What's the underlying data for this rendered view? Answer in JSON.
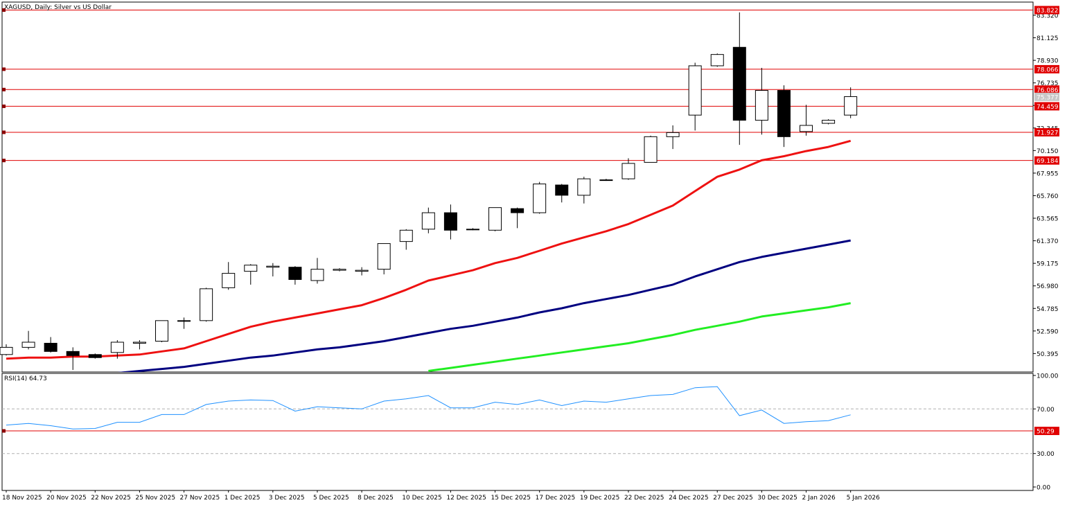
{
  "chart_data": [
    {
      "type": "candlestick",
      "title": "XAGUSD, Daily:  Silver vs US Dollar",
      "symbol": "XAGUSD",
      "timeframe": "Daily",
      "description": "Silver vs US Dollar",
      "ylim": [
        48.6,
        84.6
      ],
      "y_ticks": [
        "50.395",
        "52.590",
        "54.785",
        "56.980",
        "59.175",
        "61.370",
        "63.565",
        "65.760",
        "67.955",
        "70.150",
        "72.345",
        "74.540",
        "76.735",
        "78.930",
        "81.125",
        "83.320"
      ],
      "x_tick_labels": [
        "18 Nov 2025",
        "20 Nov 2025",
        "22 Nov 2025",
        "25 Nov 2025",
        "27 Nov 2025",
        "1 Dec 2025",
        "3 Dec 2025",
        "5 Dec 2025",
        "8 Dec 2025",
        "10 Dec 2025",
        "12 Dec 2025",
        "15 Dec 2025",
        "17 Dec 2025",
        "19 Dec 2025",
        "22 Dec 2025",
        "24 Dec 2025",
        "27 Dec 2025",
        "30 Dec 2025",
        "2 Jan 2026",
        "5 Jan 2026"
      ],
      "candles": [
        {
          "o": 50.3,
          "h": 51.3,
          "l": 50.2,
          "c": 51.0
        },
        {
          "o": 51.0,
          "h": 52.6,
          "l": 50.8,
          "c": 51.5
        },
        {
          "o": 51.4,
          "h": 52.0,
          "l": 50.5,
          "c": 50.6
        },
        {
          "o": 50.6,
          "h": 51.0,
          "l": 48.8,
          "c": 50.2
        },
        {
          "o": 50.3,
          "h": 50.4,
          "l": 49.9,
          "c": 50.0
        },
        {
          "o": 50.5,
          "h": 51.7,
          "l": 49.9,
          "c": 51.5
        },
        {
          "o": 51.4,
          "h": 51.7,
          "l": 50.8,
          "c": 51.5
        },
        {
          "o": 51.6,
          "h": 53.6,
          "l": 51.5,
          "c": 53.6
        },
        {
          "o": 53.6,
          "h": 53.9,
          "l": 52.8,
          "c": 53.6
        },
        {
          "o": 53.6,
          "h": 56.8,
          "l": 53.5,
          "c": 56.7
        },
        {
          "o": 56.8,
          "h": 59.3,
          "l": 56.6,
          "c": 58.2
        },
        {
          "o": 58.4,
          "h": 59.1,
          "l": 57.1,
          "c": 59.0
        },
        {
          "o": 58.8,
          "h": 59.2,
          "l": 57.9,
          "c": 58.9
        },
        {
          "o": 58.8,
          "h": 58.9,
          "l": 57.1,
          "c": 57.6
        },
        {
          "o": 57.5,
          "h": 59.7,
          "l": 57.2,
          "c": 58.6
        },
        {
          "o": 58.5,
          "h": 58.7,
          "l": 58.4,
          "c": 58.6
        },
        {
          "o": 58.4,
          "h": 58.8,
          "l": 58.0,
          "c": 58.5
        },
        {
          "o": 58.6,
          "h": 61.1,
          "l": 58.1,
          "c": 61.1
        },
        {
          "o": 61.3,
          "h": 62.5,
          "l": 60.5,
          "c": 62.4
        },
        {
          "o": 62.5,
          "h": 64.6,
          "l": 62.1,
          "c": 64.1
        },
        {
          "o": 64.1,
          "h": 64.9,
          "l": 61.5,
          "c": 62.4
        },
        {
          "o": 62.5,
          "h": 62.6,
          "l": 62.4,
          "c": 62.5
        },
        {
          "o": 62.4,
          "h": 64.6,
          "l": 62.3,
          "c": 64.6
        },
        {
          "o": 64.5,
          "h": 64.6,
          "l": 62.6,
          "c": 64.1
        },
        {
          "o": 64.1,
          "h": 67.1,
          "l": 64.0,
          "c": 66.9
        },
        {
          "o": 66.8,
          "h": 66.9,
          "l": 65.1,
          "c": 65.8
        },
        {
          "o": 65.8,
          "h": 67.6,
          "l": 65.0,
          "c": 67.4
        },
        {
          "o": 67.3,
          "h": 67.4,
          "l": 67.2,
          "c": 67.3
        },
        {
          "o": 67.4,
          "h": 69.4,
          "l": 67.3,
          "c": 68.9
        },
        {
          "o": 69.0,
          "h": 71.6,
          "l": 69.0,
          "c": 71.5
        },
        {
          "o": 71.5,
          "h": 72.6,
          "l": 70.3,
          "c": 71.9
        },
        {
          "o": 73.6,
          "h": 78.7,
          "l": 72.1,
          "c": 78.4
        },
        {
          "o": 78.4,
          "h": 79.6,
          "l": 78.3,
          "c": 79.5
        },
        {
          "o": 80.2,
          "h": 83.6,
          "l": 70.7,
          "c": 73.1
        },
        {
          "o": 73.1,
          "h": 78.2,
          "l": 71.7,
          "c": 76.0
        },
        {
          "o": 76.0,
          "h": 76.5,
          "l": 70.5,
          "c": 71.5
        },
        {
          "o": 72.0,
          "h": 74.6,
          "l": 71.6,
          "c": 72.6
        },
        {
          "o": 72.8,
          "h": 73.2,
          "l": 72.7,
          "c": 73.1
        },
        {
          "o": 73.6,
          "h": 76.3,
          "l": 73.3,
          "c": 75.4
        }
      ],
      "moving_averages": [
        {
          "color": "#ee1111",
          "values": [
            49.9,
            50.0,
            50.0,
            50.1,
            50.1,
            50.2,
            50.3,
            50.6,
            50.9,
            51.6,
            52.3,
            53.0,
            53.5,
            53.9,
            54.3,
            54.7,
            55.1,
            55.8,
            56.6,
            57.5,
            58.0,
            58.5,
            59.2,
            59.7,
            60.4,
            61.1,
            61.7,
            62.3,
            63.0,
            63.9,
            64.8,
            66.2,
            67.6,
            68.3,
            69.2,
            69.6,
            70.1,
            70.5,
            71.1
          ]
        },
        {
          "color": "#000080",
          "values": [
            null,
            null,
            null,
            null,
            null,
            48.5,
            48.7,
            48.9,
            49.1,
            49.4,
            49.7,
            50.0,
            50.2,
            50.5,
            50.8,
            51.0,
            51.3,
            51.6,
            52.0,
            52.4,
            52.8,
            53.1,
            53.5,
            53.9,
            54.4,
            54.8,
            55.3,
            55.7,
            56.1,
            56.6,
            57.1,
            57.9,
            58.6,
            59.3,
            59.8,
            60.2,
            60.6,
            61.0,
            61.4
          ]
        },
        {
          "color": "#22ee22",
          "values": [
            null,
            null,
            null,
            null,
            null,
            null,
            null,
            null,
            null,
            null,
            null,
            null,
            null,
            null,
            null,
            null,
            null,
            null,
            null,
            48.7,
            49.0,
            49.3,
            49.6,
            49.9,
            50.2,
            50.5,
            50.8,
            51.1,
            51.4,
            51.8,
            52.2,
            52.7,
            53.1,
            53.5,
            54.0,
            54.3,
            54.6,
            54.9,
            55.3
          ]
        }
      ],
      "levels": [
        {
          "value": 83.822,
          "label": "83.822"
        },
        {
          "value": 78.066,
          "label": "78.066"
        },
        {
          "value": 76.086,
          "label": "76.086"
        },
        {
          "value": 74.459,
          "label": "74.459"
        },
        {
          "value": 71.927,
          "label": "71.927"
        },
        {
          "value": 69.184,
          "label": "69.184"
        }
      ],
      "price_marker": {
        "value": 75.377,
        "label": "75.377"
      },
      "level_color": "#e00000",
      "candle_up_fill": "#ffffff",
      "candle_down_fill": "#000000"
    },
    {
      "type": "line",
      "title": "RSI(14) 64.73",
      "name": "RSI(14)",
      "current": "64.73",
      "ylim": [
        0,
        100
      ],
      "y_ticks": [
        "100.00",
        "70.00",
        "30.00",
        "0.00"
      ],
      "y_tick_values": [
        100,
        70,
        30,
        0
      ],
      "dashed_levels": [
        70,
        30
      ],
      "values": [
        55.5,
        57.0,
        55.0,
        52.0,
        52.5,
        58.0,
        58.0,
        65.0,
        65.0,
        74.0,
        77.0,
        78.0,
        77.5,
        68.0,
        72.0,
        71.0,
        70.0,
        77.0,
        79.0,
        82.0,
        71.0,
        71.0,
        76.0,
        74.0,
        78.0,
        73.0,
        77.0,
        76.0,
        79.0,
        82.0,
        83.0,
        89.0,
        90.0,
        64.0,
        69.0,
        57.0,
        58.5,
        59.5,
        64.7
      ],
      "line_color": "#1e90ff",
      "level": {
        "value": 50.29,
        "label": "50.29"
      }
    }
  ]
}
